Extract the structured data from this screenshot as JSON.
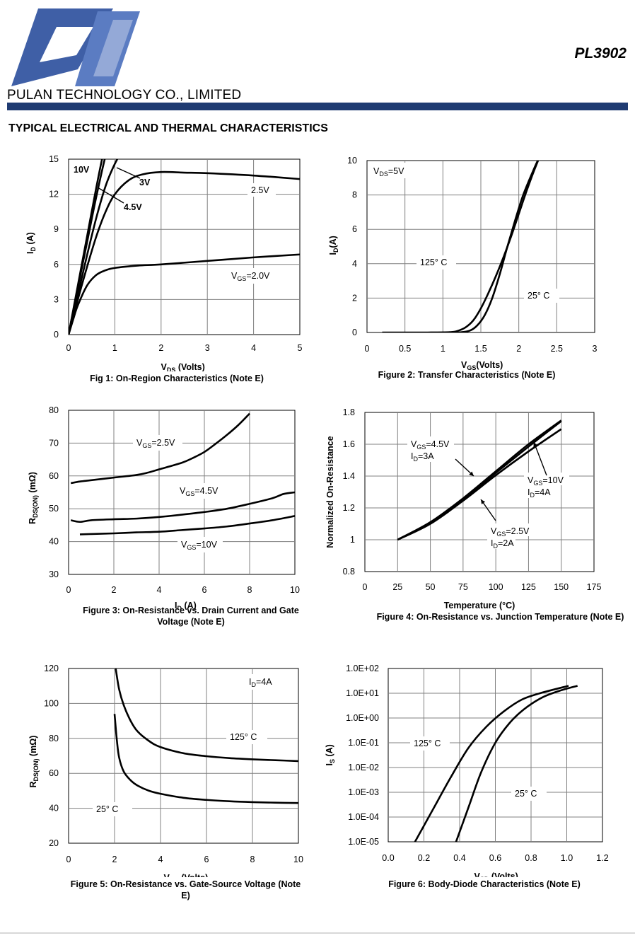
{
  "header": {
    "company": "PULAN TECHNOLOGY CO., LIMITED",
    "part_number": "PL3902",
    "section_title": "TYPICAL ELECTRICAL AND THERMAL CHARACTERISTICS",
    "brand_color": "#1f3b72",
    "logo_text": "PL"
  },
  "chart_data": [
    {
      "type": "line",
      "caption": "Fig 1: On-Region Characteristics (Note E)",
      "xlabel": "VDS (Volts)",
      "ylabel": "ID (A)",
      "xlim": [
        0,
        5
      ],
      "ylim": [
        0,
        15
      ],
      "xticks": [
        "0",
        "1",
        "2",
        "3",
        "4",
        "5"
      ],
      "yticks": [
        "0",
        "3",
        "6",
        "9",
        "12",
        "15"
      ],
      "annotations": [
        "10V",
        "3V",
        "4.5V",
        "2.5V",
        "VGS=2.0V"
      ],
      "series": [
        {
          "name": "10V",
          "x": [
            0,
            0.2,
            0.4,
            0.6,
            0.8
          ],
          "y": [
            0,
            4.2,
            8.4,
            12.6,
            16.5
          ]
        },
        {
          "name": "4.5V",
          "x": [
            0,
            0.2,
            0.4,
            0.6,
            0.8,
            0.9
          ],
          "y": [
            0,
            4,
            7.9,
            11.8,
            15.3,
            16.5
          ]
        },
        {
          "name": "3V",
          "x": [
            0,
            0.2,
            0.4,
            0.6,
            0.8,
            1.0,
            1.2
          ],
          "y": [
            0,
            3.4,
            6.8,
            10,
            12.7,
            14.6,
            16
          ]
        },
        {
          "name": "2.5V",
          "x": [
            0,
            0.2,
            0.4,
            0.6,
            0.8,
            1.0,
            1.3,
            1.6,
            2.0,
            2.5,
            3,
            4,
            5
          ],
          "y": [
            0,
            3,
            5.8,
            8.4,
            10.5,
            12,
            13.2,
            13.7,
            13.9,
            13.85,
            13.8,
            13.6,
            13.3
          ]
        },
        {
          "name": "VGS=2.0V",
          "x": [
            0,
            0.1,
            0.2,
            0.4,
            0.6,
            0.8,
            1.0,
            1.5,
            2,
            3,
            4,
            5
          ],
          "y": [
            0,
            1.3,
            2.5,
            4.2,
            5.1,
            5.5,
            5.7,
            5.9,
            6.0,
            6.3,
            6.6,
            6.85
          ]
        }
      ]
    },
    {
      "type": "line",
      "caption": "Figure 2: Transfer Characteristics (Note E)",
      "xlabel": "VGS(Volts)",
      "ylabel": "ID(A)",
      "xlim": [
        0,
        3
      ],
      "ylim": [
        0,
        10
      ],
      "xticks": [
        "0",
        "0.5",
        "1",
        "1.5",
        "2",
        "2.5",
        "3"
      ],
      "yticks": [
        "0",
        "2",
        "4",
        "6",
        "8",
        "10"
      ],
      "annotations": [
        "VDS=5V",
        "125° C",
        "25° C"
      ],
      "series": [
        {
          "name": "125° C",
          "x": [
            0.2,
            0.8,
            1.1,
            1.2,
            1.3,
            1.4,
            1.5,
            1.6,
            1.7,
            1.8,
            1.9,
            2.0,
            2.1,
            2.2,
            2.3
          ],
          "y": [
            0,
            0,
            0.02,
            0.1,
            0.3,
            0.7,
            1.4,
            2.3,
            3.3,
            4.4,
            5.6,
            6.9,
            8.2,
            9.4,
            10.5
          ]
        },
        {
          "name": "25° C",
          "x": [
            1.0,
            1.2,
            1.35,
            1.45,
            1.55,
            1.65,
            1.75,
            1.85,
            1.95,
            2.05,
            2.15,
            2.25,
            2.35
          ],
          "y": [
            0,
            0,
            0.1,
            0.4,
            1.0,
            2.0,
            3.4,
            5.0,
            6.5,
            7.9,
            9.0,
            10.0,
            10.8
          ]
        }
      ]
    },
    {
      "type": "line",
      "caption": "Figure 3: On-Resistance vs. Drain Current and Gate Voltage (Note E)",
      "xlabel": "ID (A)",
      "ylabel": "RDS(ON) (mΩ)",
      "xlim": [
        0,
        10
      ],
      "ylim": [
        30,
        80
      ],
      "xticks": [
        "0",
        "2",
        "4",
        "6",
        "8",
        "10"
      ],
      "yticks": [
        "30",
        "40",
        "50",
        "60",
        "70",
        "80"
      ],
      "annotations": [
        "VGS=2.5V",
        "VGS=4.5V",
        "VGS=10V"
      ],
      "series": [
        {
          "name": "VGS=2.5V",
          "x": [
            0.1,
            0.5,
            1,
            2,
            3,
            3.5,
            4,
            5,
            5.5,
            6,
            6.5,
            7,
            7.5,
            8
          ],
          "y": [
            57.8,
            58.3,
            58.7,
            59.5,
            60.3,
            61,
            62,
            64,
            65.5,
            67.3,
            69.8,
            72.5,
            75.5,
            79
          ]
        },
        {
          "name": "VGS=4.5V",
          "x": [
            0.1,
            0.5,
            1,
            2,
            3,
            4,
            5,
            6,
            7,
            8,
            9,
            9.5,
            10
          ],
          "y": [
            46.5,
            46,
            46.5,
            46.8,
            47,
            47.5,
            48.2,
            49,
            50,
            51.5,
            53.2,
            54.5,
            55
          ]
        },
        {
          "name": "VGS=10V",
          "x": [
            0.5,
            1,
            2,
            3,
            4,
            5,
            6,
            7,
            8,
            9,
            10
          ],
          "y": [
            42.2,
            42.3,
            42.5,
            42.8,
            43,
            43.5,
            44,
            44.6,
            45.5,
            46.5,
            47.8
          ]
        }
      ]
    },
    {
      "type": "line",
      "caption": "Figure 4: On-Resistance vs. Junction Temperature (Note E)",
      "xlabel": "Temperature (°C)",
      "ylabel": "Normalized On-Resistance",
      "xlim": [
        0,
        175
      ],
      "ylim": [
        0.8,
        1.8
      ],
      "xticks": [
        "0",
        "25",
        "50",
        "75",
        "100",
        "125",
        "150",
        "175"
      ],
      "yticks": [
        "0.8",
        "1",
        "1.2",
        "1.4",
        "1.6",
        "1.8"
      ],
      "annotations": [
        "VGS=4.5V",
        "ID=3A",
        "VGS=10V",
        "ID=4A",
        "VGS=2.5V",
        "ID=2A"
      ],
      "series": [
        {
          "name": "VGS=4.5V ID=3A",
          "x": [
            25,
            50,
            75,
            100,
            125,
            150
          ],
          "y": [
            1.0,
            1.11,
            1.255,
            1.42,
            1.585,
            1.745
          ]
        },
        {
          "name": "VGS=10V ID=4A",
          "x": [
            25,
            50,
            75,
            100,
            125,
            150
          ],
          "y": [
            1.0,
            1.11,
            1.26,
            1.43,
            1.6,
            1.75
          ]
        },
        {
          "name": "VGS=2.5V ID=2A",
          "x": [
            25,
            50,
            75,
            100,
            125,
            150
          ],
          "y": [
            1.0,
            1.1,
            1.245,
            1.405,
            1.555,
            1.695
          ]
        }
      ]
    },
    {
      "type": "line",
      "caption": "Figure 5: On-Resistance vs. Gate-Source Voltage (Note E)",
      "xlabel": "VGS (Volts)",
      "ylabel": "RDS(ON) (mΩ)",
      "xlim": [
        0,
        10
      ],
      "ylim": [
        20,
        120
      ],
      "xticks": [
        "0",
        "2",
        "4",
        "6",
        "8",
        "10"
      ],
      "yticks": [
        "20",
        "40",
        "60",
        "80",
        "100",
        "120"
      ],
      "annotations": [
        "ID=4A",
        "125° C",
        "25° C"
      ],
      "series": [
        {
          "name": "125° C",
          "x": [
            2.05,
            2.2,
            2.4,
            2.7,
            3,
            3.5,
            4,
            5,
            6,
            7,
            8,
            9,
            10
          ],
          "y": [
            120,
            108,
            99,
            90,
            84,
            78.5,
            75,
            71.5,
            69.8,
            68.7,
            68,
            67.5,
            67
          ]
        },
        {
          "name": "25° C",
          "x": [
            2.0,
            2.1,
            2.2,
            2.4,
            2.7,
            3,
            3.5,
            4,
            5,
            6,
            7,
            8,
            9,
            10
          ],
          "y": [
            94,
            79,
            69,
            61,
            56,
            53,
            50,
            48.3,
            46,
            44.8,
            44,
            43.5,
            43.2,
            43
          ]
        }
      ]
    },
    {
      "type": "line",
      "caption": "Figure 6: Body-Diode Characteristics (Note E)",
      "xlabel": "VSD (Volts)",
      "ylabel": "IS (A)",
      "xlim": [
        0,
        1.2
      ],
      "ylim_log10": [
        -5,
        2
      ],
      "xticks": [
        "0.0",
        "0.2",
        "0.4",
        "0.6",
        "0.8",
        "1.0",
        "1.2"
      ],
      "yticks": [
        "1.0E-05",
        "1.0E-04",
        "1.0E-03",
        "1.0E-02",
        "1.0E-01",
        "1.0E+00",
        "1.0E+01",
        "1.0E+02"
      ],
      "annotations": [
        "125° C",
        "25° C"
      ],
      "series": [
        {
          "name": "125° C",
          "x": [
            0.15,
            0.25,
            0.35,
            0.45,
            0.55,
            0.65,
            0.75,
            0.85,
            1.01
          ],
          "log10_y": [
            -5,
            -3.7,
            -2.4,
            -1.2,
            -0.35,
            0.28,
            0.75,
            1.0,
            1.3
          ]
        },
        {
          "name": "25° C",
          "x": [
            0.38,
            0.45,
            0.52,
            0.6,
            0.68,
            0.76,
            0.86,
            0.96,
            1.06
          ],
          "log10_y": [
            -5,
            -3.6,
            -2.2,
            -1.0,
            -0.2,
            0.35,
            0.82,
            1.1,
            1.3
          ]
        }
      ]
    }
  ]
}
